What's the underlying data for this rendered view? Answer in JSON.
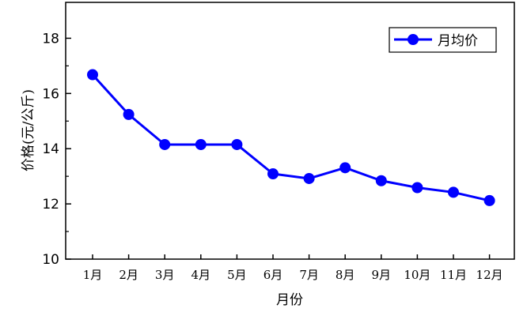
{
  "chart_data": {
    "type": "line",
    "title": "",
    "xlabel": "月份",
    "ylabel": "价格(元/公斤)",
    "categories": [
      "1月",
      "2月",
      "3月",
      "4月",
      "5月",
      "6月",
      "7月",
      "8月",
      "9月",
      "10月",
      "11月",
      "12月"
    ],
    "series": [
      {
        "name": "月均价",
        "values": [
          16.68,
          15.24,
          14.15,
          14.15,
          14.15,
          13.09,
          12.92,
          13.31,
          12.84,
          12.59,
          12.42,
          12.12
        ],
        "color": "#0000ff",
        "marker": "circle"
      }
    ],
    "ylim": [
      10,
      19.3
    ],
    "yticks": [
      10,
      12,
      14,
      16,
      18
    ],
    "grid": false,
    "legend_position": "top-right"
  }
}
